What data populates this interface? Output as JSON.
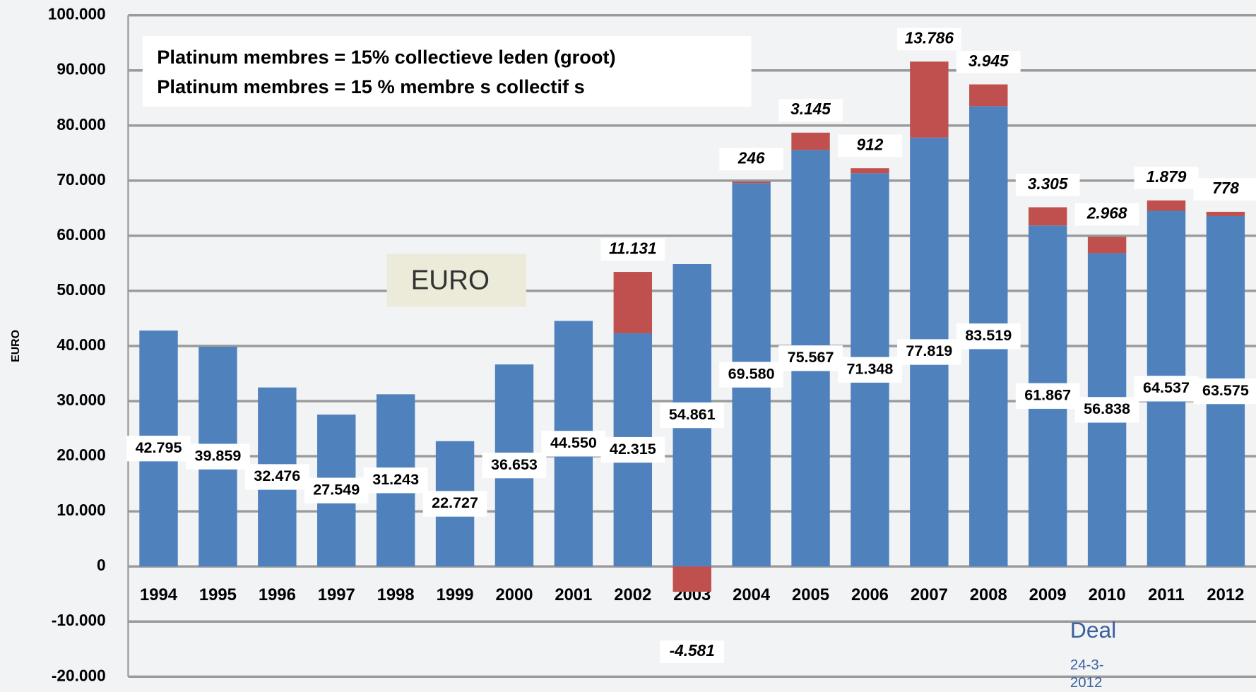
{
  "chart_data": {
    "type": "stacked_bar",
    "y_label": "EURO",
    "annotations": [
      "Platinum membres = 15% collectieve  leden  (groot)",
      "Platinum membres = 15 % membre s collectif s",
      "EURO",
      "Deal",
      "24-3-",
      "2012"
    ],
    "categories": [
      "1994",
      "1995",
      "1996",
      "1997",
      "1998",
      "1999",
      "2000",
      "2001",
      "2002",
      "2003",
      "2004",
      "2005",
      "2006",
      "2007",
      "2008",
      "2009",
      "2010",
      "2011",
      "2012"
    ],
    "series": [
      {
        "color": "#4f81bd",
        "values": [
          42795,
          39859,
          32476,
          27549,
          31243,
          22727,
          36653,
          44550,
          42315,
          54861,
          69580,
          75567,
          71348,
          77819,
          83519,
          61867,
          56838,
          64537,
          63575
        ],
        "value_labels": [
          "42.795",
          "39.859",
          "32.476",
          "27.549",
          "31.243",
          "22.727",
          "36.653",
          "44.550",
          "42.315",
          "54.861",
          "69.580",
          "75.567",
          "71.348",
          "77.819",
          "83.519",
          "61.867",
          "56.838",
          "64.537",
          "63.575"
        ]
      },
      {
        "color": "#c0504d",
        "values": [
          null,
          null,
          null,
          null,
          null,
          null,
          null,
          null,
          11131,
          -4581,
          246,
          3145,
          912,
          13786,
          3945,
          3305,
          2968,
          1879,
          778
        ],
        "value_labels": [
          null,
          null,
          null,
          null,
          null,
          null,
          null,
          null,
          "11.131",
          "-4.581",
          "246",
          "3.145",
          "912",
          "13.786",
          "3.945",
          "3.305",
          "2.968",
          "1.879",
          "778"
        ]
      }
    ],
    "ylim": [
      -20000,
      100000
    ],
    "yticks": [
      {
        "value": -20000,
        "label": "-20.000"
      },
      {
        "value": -10000,
        "label": "-10.000"
      },
      0,
      {
        "value": 10000,
        "label": "10.000"
      },
      {
        "value": 20000,
        "label": "20.000"
      },
      {
        "value": 30000,
        "label": "30.000"
      },
      {
        "value": 40000,
        "label": "40.000"
      },
      {
        "value": 50000,
        "label": "50.000"
      },
      {
        "value": 60000,
        "label": "60.000"
      },
      {
        "value": 70000,
        "label": "70.000"
      },
      {
        "value": 80000,
        "label": "80.000"
      },
      {
        "value": 90000,
        "label": "90.000"
      },
      {
        "value": 100000,
        "label": "100.000"
      }
    ],
    "grid": true
  }
}
